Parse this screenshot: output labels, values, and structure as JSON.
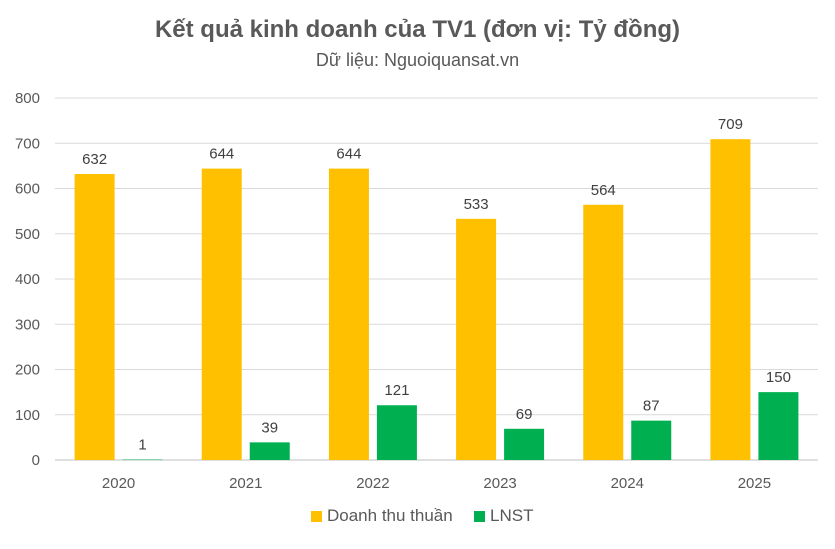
{
  "colors": {
    "revenue": "#FFC000",
    "profit": "#00B050",
    "grid": "#D9D9D9",
    "axis_text": "#595959"
  },
  "chart_data": {
    "type": "bar",
    "title": "Kết quả kinh doanh của TV1 (đơn vị: Tỷ đồng)",
    "subtitle": "Dữ liệu: Nguoiquansat.vn",
    "categories": [
      "2020",
      "2021",
      "2022",
      "2023",
      "2024",
      "2025"
    ],
    "series": [
      {
        "name": "Doanh thu thuần",
        "values": [
          632,
          644,
          644,
          533,
          564,
          709
        ],
        "color": "#FFC000"
      },
      {
        "name": "LNST",
        "values": [
          1,
          39,
          121,
          69,
          87,
          150
        ],
        "color": "#00B050"
      }
    ],
    "ylim": [
      0,
      800
    ],
    "yticks": [
      0,
      100,
      200,
      300,
      400,
      500,
      600,
      700,
      800
    ],
    "grid": true,
    "legend": "bottom-center",
    "data_labels": true
  }
}
